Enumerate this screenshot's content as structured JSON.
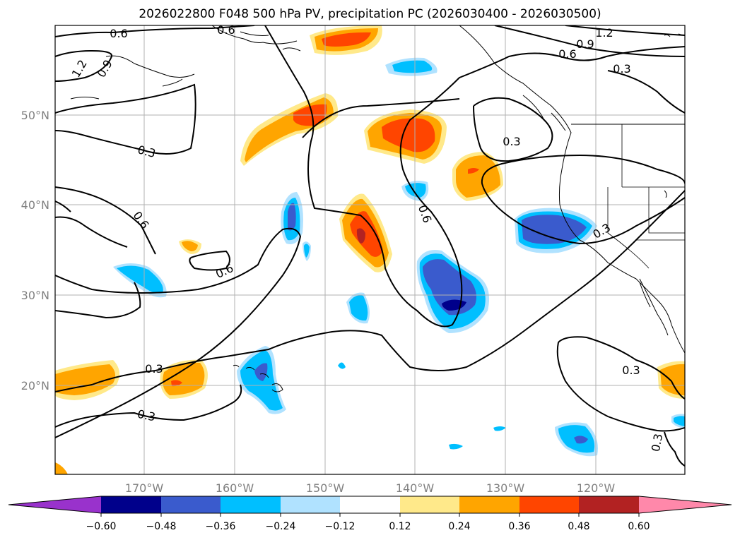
{
  "title": "2026022800 F048 500 hPa PV, precipitation PC (2026030400 - 2026030500)",
  "map": {
    "lon_labels": [
      "170°W",
      "160°W",
      "150°W",
      "140°W",
      "130°W",
      "120°W"
    ],
    "lat_labels": [
      "20°N",
      "30°N",
      "40°N",
      "50°N"
    ],
    "contour_labels": [
      "0.6",
      "0.6",
      "1.2",
      "0.9",
      "1.2",
      "0.9",
      "0.6",
      "0.3",
      "0.3",
      "0.3",
      "0.6",
      "0.6",
      "0.3",
      "0.6",
      "0.3",
      "0.3",
      "0.3",
      "0.3"
    ]
  },
  "colorbar": {
    "ticks": [
      "−0.60",
      "−0.48",
      "−0.36",
      "−0.24",
      "−0.12",
      "0.12",
      "0.24",
      "0.36",
      "0.48",
      "0.60"
    ],
    "colors": [
      "#9932cc",
      "#00008b",
      "#3a5bcd",
      "#00bfff",
      "#b0e2ff",
      "#ffffff",
      "#ffe98a",
      "#ffa500",
      "#ff4500",
      "#b22222",
      "#ff88aa"
    ]
  },
  "palette": {
    "pos1": "#ffe98a",
    "pos2": "#ffa500",
    "pos3": "#ff4500",
    "pos4": "#b22222",
    "neg1": "#b0e2ff",
    "neg2": "#00bfff",
    "neg3": "#3a5bcd",
    "neg4": "#00008b"
  }
}
